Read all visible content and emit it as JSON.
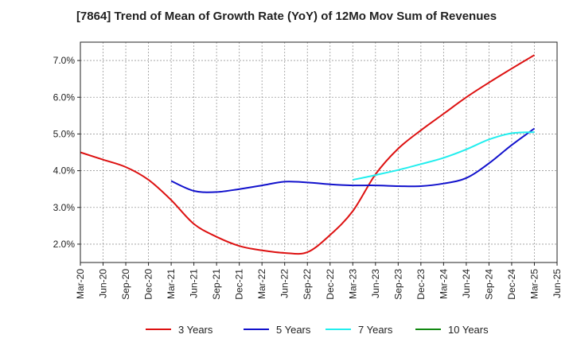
{
  "chart_data": {
    "type": "line",
    "title": "[7864]  Trend of Mean of Growth Rate (YoY) of 12Mo Mov Sum of Revenues",
    "xlabel": "",
    "ylabel": "",
    "ylim": [
      1.5,
      7.5
    ],
    "yticks": [
      2.0,
      3.0,
      4.0,
      5.0,
      6.0,
      7.0
    ],
    "ytick_labels": [
      "2.0%",
      "3.0%",
      "4.0%",
      "5.0%",
      "6.0%",
      "7.0%"
    ],
    "categories": [
      "Mar-20",
      "Jun-20",
      "Sep-20",
      "Dec-20",
      "Mar-21",
      "Jun-21",
      "Sep-21",
      "Dec-21",
      "Mar-22",
      "Jun-22",
      "Sep-22",
      "Dec-22",
      "Mar-23",
      "Jun-23",
      "Sep-23",
      "Dec-23",
      "Mar-24",
      "Jun-24",
      "Sep-24",
      "Dec-24",
      "Mar-25",
      "Jun-25"
    ],
    "grid": true,
    "legend_position": "bottom",
    "series": [
      {
        "name": "3 Years",
        "color": "#dd1111",
        "values": [
          4.5,
          4.3,
          4.1,
          3.75,
          3.2,
          2.55,
          2.2,
          1.95,
          1.83,
          1.76,
          1.78,
          2.25,
          2.9,
          3.9,
          4.6,
          5.1,
          5.55,
          6.0,
          6.4,
          6.78,
          7.15,
          null
        ]
      },
      {
        "name": "5 Years",
        "color": "#1111cc",
        "values": [
          null,
          null,
          null,
          null,
          3.72,
          3.45,
          3.42,
          3.5,
          3.6,
          3.7,
          3.68,
          3.63,
          3.6,
          3.6,
          3.58,
          3.58,
          3.65,
          3.8,
          4.2,
          4.7,
          5.15,
          null
        ]
      },
      {
        "name": "7 Years",
        "color": "#22eeee",
        "values": [
          null,
          null,
          null,
          null,
          null,
          null,
          null,
          null,
          null,
          null,
          null,
          null,
          3.75,
          3.88,
          4.02,
          4.18,
          4.35,
          4.58,
          4.85,
          5.02,
          5.05,
          null
        ]
      },
      {
        "name": "10 Years",
        "color": "#118811",
        "values": [
          null,
          null,
          null,
          null,
          null,
          null,
          null,
          null,
          null,
          null,
          null,
          null,
          null,
          null,
          null,
          null,
          null,
          null,
          null,
          null,
          null,
          null
        ]
      }
    ]
  }
}
